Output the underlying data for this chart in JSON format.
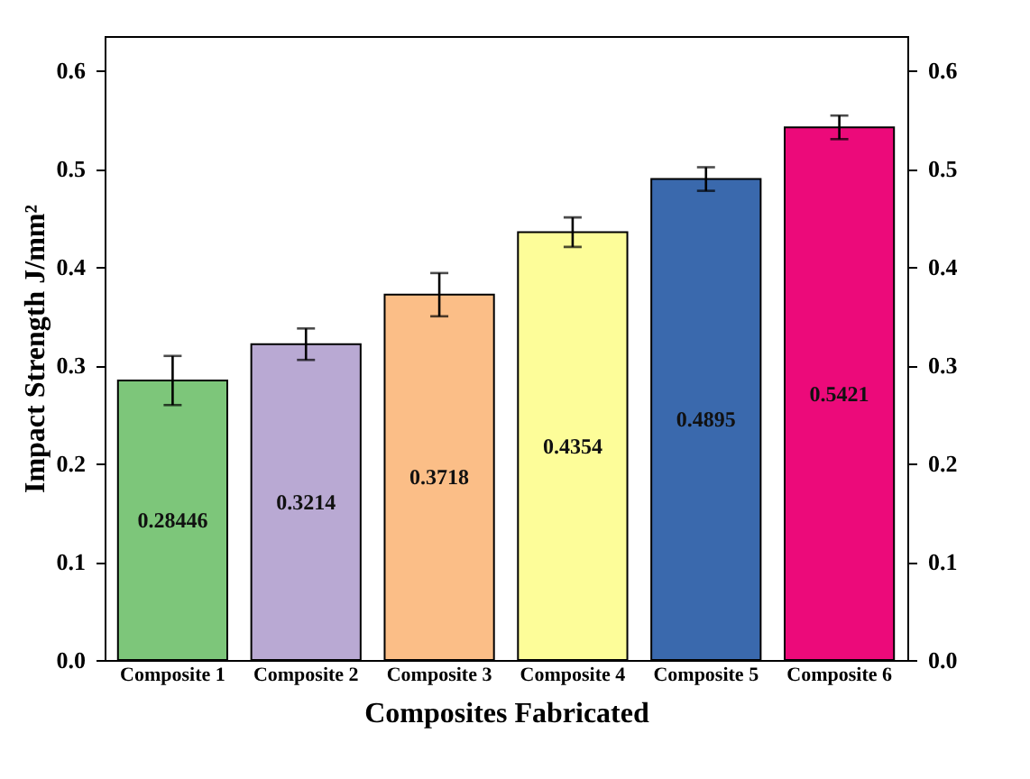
{
  "chart_data": {
    "type": "bar",
    "xlabel": "Composites Fabricated",
    "ylabel": "Impact Strength J/mm²",
    "categories": [
      "Composite 1",
      "Composite 2",
      "Composite 3",
      "Composite 4",
      "Composite 5",
      "Composite 6"
    ],
    "values": [
      0.28446,
      0.3214,
      0.3718,
      0.4354,
      0.4895,
      0.5421
    ],
    "colors": [
      "#7dc67a",
      "#b9a9d3",
      "#fbbe87",
      "#fdfd99",
      "#3a69ad",
      "#ec0a7a"
    ],
    "errors": [
      0.025,
      0.016,
      0.022,
      0.015,
      0.012,
      0.012
    ],
    "data_labels": true,
    "ylim": [
      0,
      0.635
    ],
    "yticks": [
      {
        "value": 0,
        "label": "0.0"
      },
      0.1,
      0.2,
      0.3,
      0.4,
      0.5,
      0.6
    ],
    "y2lim": [
      0,
      0.635
    ],
    "y2ticks": [
      {
        "value": 0,
        "label": "0.0"
      },
      0.1,
      0.2,
      0.3,
      0.4,
      0.5,
      0.6
    ],
    "grid": false
  }
}
